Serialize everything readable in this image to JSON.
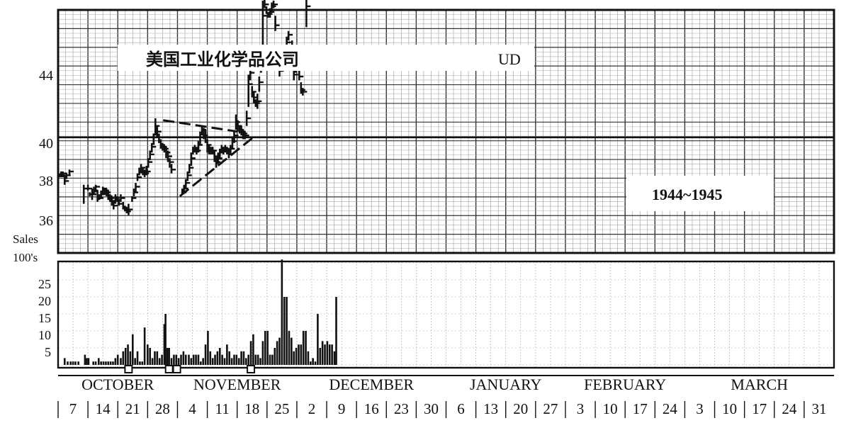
{
  "chart_data": [
    {
      "type": "bar",
      "subtype": "high-low-close",
      "title": "美国工业化学品公司",
      "symbol": "UD",
      "period_label": "1944~1945",
      "y_ticks": [
        "36",
        "38",
        "40",
        "44"
      ],
      "ylim": [
        34,
        48
      ],
      "grid": true,
      "months": [
        "OCTOBER",
        "NOVEMBER",
        "DECEMBER",
        "JANUARY",
        "FEBRUARY",
        "MARCH"
      ],
      "week_labels": [
        "7",
        "14",
        "21",
        "28",
        "4",
        "11",
        "18",
        "25",
        "2",
        "9",
        "16",
        "23",
        "30",
        "6",
        "13",
        "20",
        "27",
        "3",
        "10",
        "17",
        "24",
        "3",
        "10",
        "17",
        "24",
        "31"
      ],
      "reference_line": 40,
      "trend_lines": [
        {
          "style": "dashed",
          "x": [
            17.6,
            30.1
          ],
          "y": [
            40.9,
            40.3
          ]
        },
        {
          "style": "dashed",
          "x": [
            20.4,
            32.7
          ],
          "y": [
            36.9,
            40.0
          ]
        }
      ],
      "bars": [
        [
          0.2,
          38.1,
          37.9,
          38.0
        ],
        [
          0.5,
          38.2,
          37.9,
          38.0
        ],
        [
          0.8,
          38.2,
          37.9,
          38.1
        ],
        [
          1.1,
          38.0,
          37.5,
          37.7
        ],
        [
          1.4,
          38.1,
          37.8,
          38.0
        ],
        [
          1.9,
          38.3,
          38.0,
          38.2
        ],
        [
          4.3,
          37.5,
          36.5,
          37.3
        ],
        [
          5.0,
          37.5,
          37.2,
          37.3
        ],
        [
          5.3,
          37.1,
          36.9,
          37.0
        ],
        [
          5.7,
          37.3,
          36.7,
          37.0
        ],
        [
          6.0,
          37.4,
          37.0,
          37.2
        ],
        [
          6.3,
          37.5,
          37.1,
          37.4
        ],
        [
          6.6,
          37.2,
          36.6,
          36.8
        ],
        [
          6.9,
          37.0,
          36.7,
          36.8
        ],
        [
          7.2,
          37.2,
          36.8,
          37.0
        ],
        [
          7.5,
          37.4,
          37.0,
          37.3
        ],
        [
          7.8,
          37.3,
          37.0,
          37.2
        ],
        [
          8.1,
          37.3,
          36.9,
          37.1
        ],
        [
          8.4,
          37.2,
          36.7,
          36.9
        ],
        [
          8.7,
          37.0,
          36.6,
          36.8
        ],
        [
          9.0,
          36.8,
          36.4,
          36.6
        ],
        [
          9.3,
          36.7,
          36.2,
          36.4
        ],
        [
          9.6,
          37.0,
          36.5,
          36.8
        ],
        [
          9.9,
          36.9,
          36.6,
          36.7
        ],
        [
          10.2,
          36.7,
          36.4,
          36.5
        ],
        [
          10.5,
          37.0,
          36.6,
          36.8
        ],
        [
          10.9,
          36.6,
          36.2,
          36.3
        ],
        [
          11.2,
          36.4,
          36.1,
          36.2
        ],
        [
          11.5,
          36.3,
          36.0,
          36.1
        ],
        [
          11.8,
          36.5,
          35.9,
          36.2
        ],
        [
          12.4,
          36.9,
          36.6,
          36.8
        ],
        [
          12.7,
          37.3,
          36.9,
          37.1
        ],
        [
          13.0,
          37.6,
          37.1,
          37.4
        ],
        [
          13.3,
          38.1,
          37.7,
          37.9
        ],
        [
          13.6,
          38.4,
          38.0,
          38.2
        ],
        [
          13.9,
          38.6,
          38.1,
          38.4
        ],
        [
          14.2,
          38.4,
          38.0,
          38.2
        ],
        [
          14.5,
          38.3,
          37.9,
          38.1
        ],
        [
          14.8,
          38.5,
          38.0,
          38.2
        ],
        [
          15.1,
          38.9,
          38.4,
          38.7
        ],
        [
          15.4,
          39.3,
          38.8,
          39.1
        ],
        [
          15.7,
          39.7,
          39.2,
          39.5
        ],
        [
          16.0,
          40.2,
          39.6,
          40.0
        ],
        [
          16.3,
          41.0,
          40.1,
          40.6
        ],
        [
          16.6,
          40.6,
          40.0,
          40.3
        ],
        [
          16.9,
          40.2,
          39.7,
          40.0
        ],
        [
          17.2,
          39.9,
          39.4,
          39.6
        ],
        [
          17.5,
          39.7,
          39.3,
          39.5
        ],
        [
          17.8,
          39.6,
          39.2,
          39.4
        ],
        [
          18.1,
          39.5,
          38.9,
          39.2
        ],
        [
          18.4,
          39.3,
          38.7,
          39.0
        ],
        [
          18.7,
          38.9,
          38.4,
          38.7
        ],
        [
          19.0,
          38.6,
          38.1,
          38.3
        ],
        [
          20.8,
          37.3,
          37.0,
          37.1
        ],
        [
          21.1,
          37.5,
          37.1,
          37.3
        ],
        [
          21.4,
          37.8,
          37.3,
          37.6
        ],
        [
          21.7,
          38.2,
          37.7,
          38.0
        ],
        [
          22.0,
          38.6,
          38.1,
          38.4
        ],
        [
          22.3,
          39.2,
          38.5,
          38.9
        ],
        [
          22.6,
          39.5,
          39.1,
          39.3
        ],
        [
          22.9,
          39.6,
          39.2,
          39.4
        ],
        [
          23.2,
          39.5,
          39.1,
          39.3
        ],
        [
          23.5,
          39.8,
          39.2,
          39.6
        ],
        [
          23.8,
          40.3,
          39.6,
          40.0
        ],
        [
          24.1,
          40.6,
          40.1,
          40.4
        ],
        [
          24.4,
          40.5,
          39.9,
          40.1
        ],
        [
          24.7,
          40.4,
          39.7,
          40.0
        ],
        [
          25.0,
          39.9,
          39.2,
          39.6
        ],
        [
          25.3,
          39.6,
          39.1,
          39.3
        ],
        [
          25.6,
          39.5,
          39.1,
          39.3
        ],
        [
          25.9,
          39.5,
          39.1,
          39.3
        ],
        [
          26.2,
          39.3,
          38.7,
          39.0
        ],
        [
          26.5,
          39.0,
          38.4,
          38.7
        ],
        [
          26.8,
          39.2,
          38.6,
          38.9
        ],
        [
          27.1,
          39.4,
          38.9,
          39.2
        ],
        [
          27.4,
          39.6,
          39.2,
          39.4
        ],
        [
          27.7,
          39.5,
          39.1,
          39.3
        ],
        [
          28.0,
          39.6,
          39.2,
          39.4
        ],
        [
          28.3,
          39.5,
          39.1,
          39.3
        ],
        [
          28.6,
          39.4,
          38.9,
          39.1
        ],
        [
          28.9,
          39.6,
          39.1,
          39.4
        ],
        [
          29.2,
          40.0,
          39.4,
          39.8
        ],
        [
          29.5,
          40.3,
          39.7,
          40.1
        ],
        [
          29.8,
          41.2,
          40.4,
          40.8
        ],
        [
          30.1,
          40.9,
          40.3,
          40.6
        ],
        [
          30.4,
          40.6,
          40.2,
          40.4
        ],
        [
          30.7,
          40.6,
          40.1,
          40.3
        ],
        [
          31.0,
          40.4,
          39.9,
          40.2
        ],
        [
          31.3,
          40.3,
          39.9,
          40.1
        ],
        [
          31.6,
          41.4,
          40.6,
          41.0
        ],
        [
          31.9,
          43.3,
          41.6,
          42.8
        ],
        [
          32.2,
          43.8,
          43.0,
          43.4
        ],
        [
          32.5,
          42.7,
          42.1,
          42.4
        ],
        [
          32.8,
          42.4,
          41.8,
          42.1
        ],
        [
          33.1,
          42.0,
          41.6,
          41.8
        ],
        [
          33.4,
          42.3,
          41.5,
          41.9
        ],
        [
          33.7,
          43.2,
          42.4,
          42.9
        ],
        [
          34.0,
          44.3,
          43.4,
          44.0
        ],
        [
          34.3,
          47.2,
          44.1,
          46.4
        ],
        [
          34.6,
          47.3,
          46.8,
          47.0
        ],
        [
          34.9,
          46.9,
          46.5,
          46.7
        ],
        [
          35.2,
          46.6,
          46.3,
          46.5
        ],
        [
          35.5,
          46.8,
          46.3,
          46.6
        ],
        [
          35.8,
          47.1,
          46.6,
          46.9
        ],
        [
          36.1,
          47.2,
          46.8,
          47.0
        ],
        [
          36.4,
          46.4,
          45.6,
          45.9
        ],
        [
          37.1,
          43.7,
          43.2,
          43.5
        ],
        [
          37.4,
          44.3,
          43.7,
          44.1
        ],
        [
          37.7,
          44.4,
          43.9,
          44.2
        ],
        [
          38.3,
          45.3,
          44.6,
          45.0
        ],
        [
          38.6,
          45.6,
          45.1,
          45.4
        ],
        [
          39.2,
          45.1,
          43.6,
          44.1
        ],
        [
          39.5,
          43.6,
          43.0,
          43.3
        ],
        [
          39.8,
          44.2,
          43.4,
          43.9
        ],
        [
          40.1,
          44.0,
          43.5,
          43.7
        ],
        [
          40.4,
          43.5,
          43.0,
          43.2
        ],
        [
          40.7,
          42.9,
          42.3,
          42.5
        ],
        [
          41.0,
          42.6,
          42.2,
          42.4
        ],
        [
          41.3,
          44.3,
          43.6,
          44.0
        ],
        [
          41.6,
          47.3,
          45.8,
          46.9
        ]
      ]
    },
    {
      "type": "bar",
      "ylabel": "Sales 100's",
      "y_ticks": [
        "5",
        "10",
        "15",
        "20",
        "25"
      ],
      "ylim": [
        0,
        30
      ],
      "holiday_markers": [
        11.8,
        18.6,
        19.9,
        32.3
      ],
      "volume": [
        [
          1.1,
          2
        ],
        [
          1.6,
          1
        ],
        [
          2.1,
          1
        ],
        [
          2.5,
          1
        ],
        [
          2.9,
          1
        ],
        [
          3.4,
          1
        ],
        [
          4.5,
          3
        ],
        [
          4.8,
          2
        ],
        [
          5.1,
          2
        ],
        [
          5.9,
          1
        ],
        [
          6.3,
          1
        ],
        [
          6.8,
          2
        ],
        [
          7.2,
          1
        ],
        [
          7.6,
          1
        ],
        [
          8.0,
          1
        ],
        [
          8.4,
          1
        ],
        [
          8.8,
          1
        ],
        [
          9.2,
          1
        ],
        [
          9.6,
          2
        ],
        [
          10.0,
          3
        ],
        [
          10.5,
          2
        ],
        [
          10.9,
          4
        ],
        [
          11.3,
          5
        ],
        [
          11.7,
          6
        ],
        [
          12.1,
          4
        ],
        [
          12.5,
          9
        ],
        [
          12.9,
          2
        ],
        [
          13.3,
          4
        ],
        [
          13.7,
          1
        ],
        [
          14.1,
          1
        ],
        [
          14.5,
          11
        ],
        [
          15.0,
          6
        ],
        [
          15.4,
          5
        ],
        [
          15.8,
          2
        ],
        [
          16.2,
          4
        ],
        [
          16.6,
          4
        ],
        [
          17.0,
          2
        ],
        [
          17.4,
          3
        ],
        [
          17.8,
          12
        ],
        [
          18.0,
          15
        ],
        [
          18.3,
          5
        ],
        [
          18.6,
          5
        ],
        [
          19.0,
          2
        ],
        [
          19.4,
          3
        ],
        [
          19.8,
          3
        ],
        [
          20.2,
          2
        ],
        [
          20.6,
          3
        ],
        [
          21.0,
          4
        ],
        [
          21.4,
          3
        ],
        [
          21.9,
          3
        ],
        [
          22.3,
          2
        ],
        [
          22.7,
          3
        ],
        [
          23.1,
          3
        ],
        [
          23.5,
          3
        ],
        [
          23.9,
          1
        ],
        [
          24.3,
          2
        ],
        [
          24.7,
          6
        ],
        [
          25.1,
          10
        ],
        [
          25.5,
          4
        ],
        [
          25.9,
          2
        ],
        [
          26.3,
          3
        ],
        [
          26.7,
          4
        ],
        [
          27.1,
          5
        ],
        [
          27.5,
          3
        ],
        [
          27.9,
          2
        ],
        [
          28.3,
          6
        ],
        [
          28.7,
          4
        ],
        [
          29.1,
          2
        ],
        [
          29.5,
          3
        ],
        [
          29.9,
          3
        ],
        [
          30.3,
          2
        ],
        [
          30.7,
          4
        ],
        [
          31.1,
          4
        ],
        [
          31.5,
          2
        ],
        [
          31.9,
          3
        ],
        [
          32.3,
          7
        ],
        [
          32.7,
          9
        ],
        [
          33.1,
          3
        ],
        [
          33.5,
          3
        ],
        [
          33.9,
          2
        ],
        [
          34.3,
          7
        ],
        [
          34.7,
          10
        ],
        [
          35.1,
          10
        ],
        [
          35.5,
          3
        ],
        [
          35.9,
          3
        ],
        [
          36.3,
          5
        ],
        [
          36.7,
          7
        ],
        [
          37.1,
          8
        ],
        [
          37.5,
          31
        ],
        [
          37.9,
          20
        ],
        [
          38.3,
          20
        ],
        [
          38.7,
          10
        ],
        [
          39.1,
          8
        ],
        [
          39.5,
          4
        ],
        [
          39.9,
          5
        ],
        [
          40.3,
          6
        ],
        [
          40.7,
          6
        ],
        [
          41.1,
          10
        ],
        [
          41.5,
          10
        ],
        [
          41.9,
          4
        ],
        [
          42.3,
          1
        ],
        [
          42.7,
          2
        ],
        [
          43.1,
          1
        ],
        [
          43.5,
          15
        ],
        [
          43.9,
          5
        ],
        [
          44.3,
          7
        ],
        [
          44.7,
          6
        ],
        [
          45.1,
          7
        ],
        [
          45.5,
          6
        ],
        [
          45.9,
          6
        ],
        [
          46.3,
          4
        ],
        [
          46.6,
          20
        ]
      ]
    }
  ]
}
